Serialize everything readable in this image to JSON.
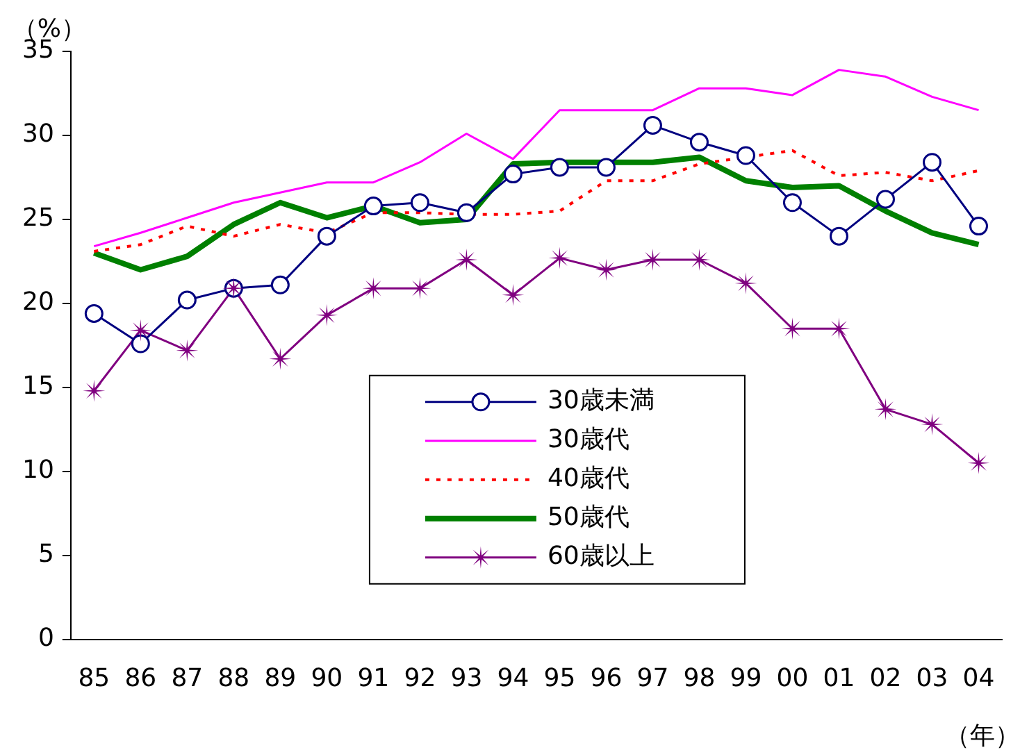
{
  "chart_data": {
    "type": "line",
    "xlabel": "（年）",
    "ylabel": "（%）",
    "categories": [
      "85",
      "86",
      "87",
      "88",
      "89",
      "90",
      "91",
      "92",
      "93",
      "94",
      "95",
      "96",
      "97",
      "98",
      "99",
      "00",
      "01",
      "02",
      "03",
      "04"
    ],
    "series": [
      {
        "name": "30歳未満",
        "color": "#000080",
        "marker": "circle",
        "line_style": "solid",
        "values": [
          19.4,
          17.6,
          20.2,
          20.9,
          21.1,
          24.0,
          25.8,
          26.0,
          25.4,
          27.7,
          28.1,
          28.1,
          30.6,
          29.6,
          28.8,
          26.0,
          24.0,
          26.2,
          28.4,
          24.6
        ]
      },
      {
        "name": "30歳代",
        "color": "#ff00ff",
        "marker": "none",
        "line_style": "solid",
        "values": [
          23.4,
          24.2,
          25.1,
          26.0,
          26.6,
          27.2,
          27.2,
          28.4,
          30.1,
          28.6,
          31.5,
          31.5,
          31.5,
          32.8,
          32.8,
          32.4,
          33.9,
          33.5,
          32.3,
          31.5
        ]
      },
      {
        "name": "40歳代",
        "color": "#ff0000",
        "marker": "none",
        "line_style": "dotted",
        "values": [
          23.1,
          23.5,
          24.6,
          24.0,
          24.7,
          24.2,
          25.4,
          25.4,
          25.3,
          25.3,
          25.5,
          27.3,
          27.3,
          28.3,
          28.7,
          29.1,
          27.6,
          27.8,
          27.3,
          27.9
        ]
      },
      {
        "name": "50歳代",
        "color": "#008000",
        "marker": "none",
        "line_style": "solid",
        "values": [
          23.0,
          22.0,
          22.8,
          24.7,
          26.0,
          25.1,
          25.8,
          24.8,
          25.0,
          28.3,
          28.4,
          28.4,
          28.4,
          28.7,
          27.3,
          26.9,
          27.0,
          25.5,
          24.2,
          23.5
        ]
      },
      {
        "name": "60歳以上",
        "color": "#800080",
        "marker": "star",
        "line_style": "solid",
        "values": [
          14.8,
          18.4,
          17.2,
          20.9,
          16.7,
          19.3,
          20.9,
          20.9,
          22.6,
          20.5,
          22.7,
          22.0,
          22.6,
          22.6,
          21.2,
          18.5,
          18.5,
          13.7,
          12.8,
          10.5
        ]
      }
    ],
    "ylim": [
      0,
      35
    ],
    "yticks": [
      0,
      5,
      10,
      15,
      20,
      25,
      30,
      35
    ],
    "grid": false,
    "legend": "bottom"
  }
}
